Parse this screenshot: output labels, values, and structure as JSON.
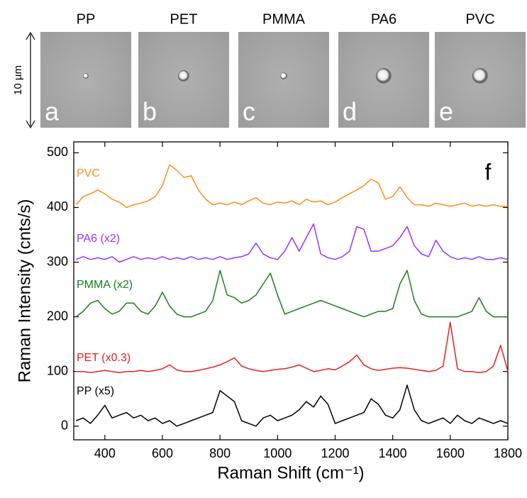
{
  "images": {
    "scale_label": "10 µm",
    "panels": [
      {
        "title": "PP",
        "letter": "a"
      },
      {
        "title": "PET",
        "letter": "b"
      },
      {
        "title": "PMMA",
        "letter": "c"
      },
      {
        "title": "PA6",
        "letter": "d"
      },
      {
        "title": "PVC",
        "letter": "e"
      }
    ]
  },
  "chart_data": {
    "type": "line",
    "panel_label": "f",
    "x_label": "Raman Shift (cm⁻¹)",
    "y_label": "Raman Intensity (cnts/s)",
    "x": [
      300,
      325,
      350,
      375,
      400,
      425,
      450,
      475,
      500,
      525,
      550,
      575,
      600,
      625,
      650,
      675,
      700,
      725,
      750,
      775,
      800,
      825,
      850,
      875,
      900,
      925,
      950,
      975,
      1000,
      1025,
      1050,
      1075,
      1100,
      1125,
      1150,
      1175,
      1200,
      1225,
      1250,
      1275,
      1300,
      1325,
      1350,
      1375,
      1400,
      1425,
      1450,
      1475,
      1500,
      1525,
      1550,
      1575,
      1600,
      1625,
      1650,
      1675,
      1700,
      1725,
      1750,
      1775,
      1800
    ],
    "series": [
      {
        "name": "PVC",
        "color": "#ff8c1a",
        "values": [
          405,
          420,
          425,
          432,
          425,
          415,
          410,
          400,
          405,
          408,
          412,
          420,
          440,
          478,
          468,
          455,
          458,
          432,
          415,
          405,
          408,
          405,
          410,
          405,
          412,
          418,
          408,
          405,
          410,
          408,
          412,
          405,
          415,
          410,
          412,
          405,
          410,
          418,
          425,
          432,
          440,
          452,
          445,
          415,
          420,
          438,
          418,
          405,
          405,
          402,
          408,
          405,
          402,
          405,
          408,
          402,
          405,
          402,
          405,
          402,
          402
        ]
      },
      {
        "name": "PA6 (x2)",
        "color": "#9b30ff",
        "values": [
          305,
          310,
          305,
          308,
          305,
          310,
          300,
          305,
          310,
          305,
          308,
          305,
          310,
          305,
          308,
          305,
          310,
          305,
          308,
          305,
          310,
          305,
          308,
          310,
          315,
          335,
          315,
          308,
          305,
          320,
          345,
          320,
          345,
          370,
          315,
          308,
          305,
          310,
          320,
          365,
          360,
          320,
          320,
          325,
          330,
          345,
          365,
          330,
          315,
          310,
          340,
          320,
          310,
          305,
          308,
          305,
          310,
          305,
          305,
          308,
          305
        ]
      },
      {
        "name": "PMMA (x2)",
        "color": "#1a7f1a",
        "values": [
          200,
          210,
          225,
          230,
          215,
          205,
          210,
          225,
          225,
          210,
          205,
          220,
          245,
          220,
          205,
          200,
          200,
          205,
          210,
          230,
          285,
          240,
          235,
          225,
          230,
          240,
          260,
          280,
          240,
          205,
          210,
          215,
          220,
          225,
          230,
          225,
          220,
          215,
          210,
          205,
          200,
          205,
          210,
          210,
          215,
          260,
          285,
          230,
          205,
          200,
          200,
          200,
          200,
          200,
          205,
          210,
          235,
          210,
          200,
          200,
          200
        ]
      },
      {
        "name": "PET (x0.3)",
        "color": "#e82020",
        "values": [
          100,
          100,
          98,
          100,
          102,
          100,
          98,
          100,
          100,
          102,
          100,
          102,
          105,
          112,
          103,
          100,
          100,
          102,
          105,
          108,
          112,
          118,
          125,
          110,
          105,
          102,
          100,
          102,
          104,
          105,
          108,
          112,
          106,
          100,
          102,
          105,
          103,
          110,
          118,
          130,
          112,
          105,
          102,
          104,
          106,
          107,
          106,
          104,
          102,
          100,
          102,
          110,
          190,
          105,
          100,
          100,
          98,
          100,
          110,
          148,
          100
        ]
      },
      {
        "name": "PP (x5)",
        "color": "#000000",
        "values": [
          10,
          15,
          5,
          20,
          38,
          15,
          20,
          25,
          15,
          20,
          10,
          15,
          5,
          10,
          0,
          5,
          10,
          15,
          20,
          25,
          65,
          55,
          45,
          10,
          5,
          0,
          15,
          20,
          10,
          15,
          20,
          30,
          45,
          35,
          55,
          40,
          5,
          10,
          15,
          20,
          25,
          50,
          40,
          20,
          15,
          30,
          75,
          30,
          10,
          5,
          10,
          15,
          5,
          20,
          10,
          5,
          15,
          10,
          5,
          10,
          5
        ]
      }
    ],
    "xlim": [
      292,
      1800
    ],
    "ylim": [
      -25,
      520
    ],
    "xticks": [
      400,
      600,
      800,
      1000,
      1200,
      1400,
      1600,
      1800
    ],
    "yticks": [
      0,
      100,
      200,
      300,
      400,
      500
    ],
    "grid": false
  }
}
